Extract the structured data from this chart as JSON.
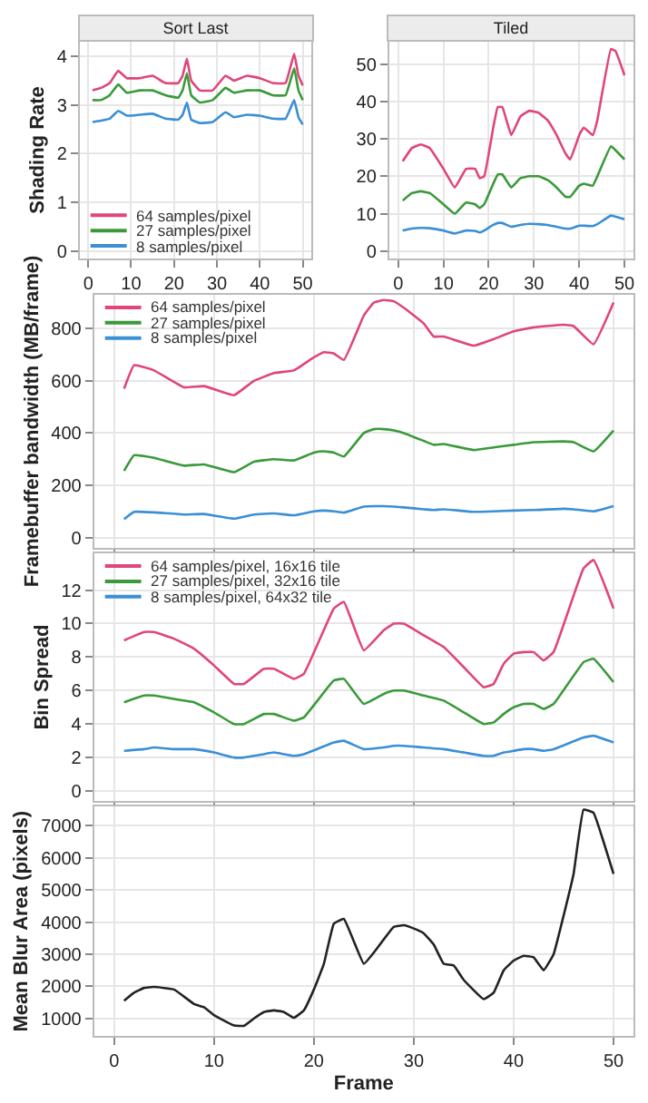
{
  "chart_data": [
    {
      "type": "line",
      "title": "Sort Last",
      "ylabel": "Shading Rate",
      "xlim": [
        -2,
        52
      ],
      "xticks": [
        0,
        10,
        20,
        30,
        40,
        50
      ],
      "ylim": [
        -0.15,
        4.3
      ],
      "yticks": [
        0,
        1,
        2,
        3,
        4
      ],
      "grid": true,
      "legend": "bottom left",
      "x": [
        1,
        3,
        5,
        7,
        9,
        12,
        15,
        18,
        21,
        22,
        23,
        24,
        26,
        29,
        32,
        34,
        37,
        40,
        43,
        46,
        48,
        49,
        50
      ],
      "series": [
        {
          "name": "64 samples/pixel",
          "color": "#e0457b",
          "values": [
            3.3,
            3.35,
            3.45,
            3.7,
            3.55,
            3.55,
            3.6,
            3.45,
            3.45,
            3.6,
            3.95,
            3.5,
            3.3,
            3.3,
            3.6,
            3.5,
            3.6,
            3.55,
            3.45,
            3.45,
            4.05,
            3.6,
            3.4
          ]
        },
        {
          "name": "27 samples/pixel",
          "color": "#3a9a3a",
          "values": [
            3.1,
            3.1,
            3.2,
            3.42,
            3.25,
            3.3,
            3.3,
            3.2,
            3.15,
            3.3,
            3.65,
            3.2,
            3.05,
            3.1,
            3.35,
            3.25,
            3.3,
            3.3,
            3.2,
            3.2,
            3.75,
            3.3,
            3.1
          ]
        },
        {
          "name": "8 samples/pixel",
          "color": "#3a8fd6",
          "values": [
            2.65,
            2.68,
            2.72,
            2.88,
            2.78,
            2.8,
            2.82,
            2.72,
            2.7,
            2.8,
            3.05,
            2.7,
            2.63,
            2.65,
            2.85,
            2.75,
            2.8,
            2.78,
            2.72,
            2.72,
            3.1,
            2.75,
            2.6
          ]
        }
      ]
    },
    {
      "type": "line",
      "title": "Tiled",
      "xlim": [
        -2,
        52
      ],
      "xticks": [
        0,
        10,
        20,
        30,
        40,
        50
      ],
      "ylim": [
        -2,
        56
      ],
      "yticks": [
        0,
        10,
        20,
        30,
        40,
        50
      ],
      "grid": true,
      "x": [
        1,
        3,
        5,
        7,
        10,
        12.5,
        15,
        17,
        18,
        19,
        21,
        22,
        23,
        25,
        27,
        29,
        31,
        33,
        35,
        37,
        38,
        40,
        41,
        43,
        44,
        47,
        48,
        50
      ],
      "series": [
        {
          "color": "#e0457b",
          "values": [
            24,
            27.5,
            28.5,
            27.5,
            22,
            17,
            22,
            22,
            19.5,
            20,
            33,
            38.5,
            38.5,
            31,
            36,
            37.5,
            37,
            35,
            31,
            26,
            24.5,
            31,
            33,
            31,
            35,
            54,
            53.5,
            47
          ]
        },
        {
          "color": "#3a9a3a",
          "values": [
            13.5,
            15.5,
            16,
            15.5,
            12.5,
            10,
            13,
            12.5,
            11.5,
            12.5,
            18,
            20.5,
            20.5,
            17,
            19.5,
            20,
            20,
            19,
            17,
            14.5,
            14.5,
            17.5,
            18,
            17.5,
            20,
            28,
            27,
            24.5
          ]
        },
        {
          "color": "#3a8fd6",
          "values": [
            5.5,
            6,
            6.2,
            6.1,
            5.5,
            4.7,
            5.5,
            5.4,
            5,
            5.5,
            7,
            7.5,
            7.5,
            6.5,
            7,
            7.3,
            7.2,
            7,
            6.5,
            6,
            6,
            6.8,
            6.8,
            6.7,
            7.2,
            9.5,
            9.2,
            8.5
          ]
        }
      ]
    },
    {
      "type": "line",
      "ylabel": "Framebuffer bandwidth (MB/frame)",
      "xlim": [
        -2,
        52
      ],
      "xticks": [
        0,
        10,
        20,
        30,
        40,
        50
      ],
      "ylim": [
        -40,
        930
      ],
      "yticks": [
        0,
        200,
        400,
        600,
        800
      ],
      "grid": true,
      "legend": "top left",
      "tick_labels": "y",
      "x": [
        1,
        2,
        4,
        7,
        9,
        12,
        14,
        16,
        18,
        20,
        21,
        22,
        23,
        25,
        26,
        27,
        28,
        29,
        31,
        32,
        33,
        36,
        38,
        40,
        42,
        45,
        46,
        48,
        50
      ],
      "series": [
        {
          "name": "64 samples/pixel",
          "color": "#e0457b",
          "values": [
            570,
            660,
            640,
            575,
            580,
            545,
            600,
            630,
            640,
            690,
            710,
            705,
            680,
            850,
            900,
            910,
            905,
            880,
            820,
            770,
            770,
            735,
            760,
            790,
            805,
            815,
            810,
            740,
            900
          ]
        },
        {
          "name": "27 samples/pixel",
          "color": "#3a9a3a",
          "values": [
            255,
            315,
            305,
            275,
            280,
            250,
            290,
            300,
            295,
            325,
            330,
            325,
            310,
            400,
            415,
            415,
            410,
            400,
            370,
            355,
            358,
            335,
            345,
            355,
            365,
            368,
            365,
            330,
            410
          ]
        },
        {
          "name": "8 samples/pixel",
          "color": "#3a8fd6",
          "values": [
            70,
            98,
            96,
            88,
            90,
            72,
            88,
            92,
            85,
            100,
            103,
            100,
            95,
            118,
            120,
            120,
            118,
            115,
            108,
            105,
            108,
            98,
            100,
            103,
            105,
            110,
            108,
            100,
            120
          ]
        }
      ]
    },
    {
      "type": "line",
      "ylabel": "Bin Spread",
      "xlim": [
        -2,
        52
      ],
      "xticks": [
        0,
        10,
        20,
        30,
        40,
        50
      ],
      "ylim": [
        -0.6,
        14.2
      ],
      "yticks": [
        0,
        2,
        4,
        6,
        8,
        10,
        12
      ],
      "grid": true,
      "legend": "top left",
      "tick_labels": "y",
      "x": [
        1,
        3,
        4,
        6,
        8,
        10,
        12,
        13,
        15,
        16,
        18,
        19,
        22,
        23,
        25,
        27,
        28,
        29,
        31,
        33,
        35,
        37,
        38,
        39,
        40,
        41,
        42,
        43,
        44,
        47,
        48,
        50
      ],
      "series": [
        {
          "name": "64 samples/pixel, 16x16 tile",
          "color": "#e0457b",
          "values": [
            9.0,
            9.5,
            9.5,
            9.1,
            8.5,
            7.5,
            6.4,
            6.4,
            7.3,
            7.3,
            6.7,
            7.0,
            10.9,
            11.3,
            8.4,
            9.6,
            10,
            10,
            9.3,
            8.6,
            7.4,
            6.2,
            6.4,
            7.6,
            8.2,
            8.3,
            8.3,
            7.8,
            8.3,
            13.3,
            13.8,
            10.9
          ]
        },
        {
          "name": "27 samples/pixel, 32x16 tile",
          "color": "#3a9a3a",
          "values": [
            5.3,
            5.7,
            5.7,
            5.5,
            5.3,
            4.7,
            4.0,
            4.0,
            4.6,
            4.6,
            4.2,
            4.4,
            6.6,
            6.7,
            5.2,
            5.8,
            6.0,
            6.0,
            5.7,
            5.4,
            4.7,
            4.0,
            4.1,
            4.6,
            5.0,
            5.2,
            5.2,
            4.9,
            5.2,
            7.7,
            7.9,
            6.5
          ]
        },
        {
          "name": "8 samples/pixel, 64x32 tile",
          "color": "#3a8fd6",
          "values": [
            2.4,
            2.5,
            2.6,
            2.5,
            2.5,
            2.3,
            2.0,
            2.0,
            2.2,
            2.3,
            2.1,
            2.2,
            2.9,
            3.0,
            2.5,
            2.6,
            2.7,
            2.7,
            2.6,
            2.5,
            2.3,
            2.1,
            2.1,
            2.3,
            2.4,
            2.5,
            2.5,
            2.4,
            2.5,
            3.2,
            3.3,
            2.9
          ]
        }
      ]
    },
    {
      "type": "line",
      "ylabel": "Mean Blur Area (pixels)",
      "xlabel": "Frame",
      "xlim": [
        -2,
        52
      ],
      "xticks": [
        0,
        10,
        20,
        30,
        40,
        50
      ],
      "ylim": [
        450,
        7600
      ],
      "yticks": [
        1000,
        2000,
        3000,
        4000,
        5000,
        6000,
        7000
      ],
      "grid": true,
      "x": [
        1,
        2,
        3,
        4,
        6,
        8,
        9,
        10,
        12,
        13,
        14,
        15,
        16,
        17,
        18,
        19,
        20,
        21,
        22,
        23,
        25,
        26,
        28,
        29,
        30,
        31,
        32,
        33,
        34,
        35,
        37,
        38,
        39,
        40,
        41,
        42,
        43,
        44,
        45,
        46,
        47,
        48,
        49,
        50
      ],
      "series": [
        {
          "color": "#222222",
          "values": [
            1550,
            1800,
            1950,
            1980,
            1900,
            1450,
            1350,
            1100,
            780,
            770,
            1000,
            1200,
            1250,
            1200,
            1020,
            1250,
            1900,
            2700,
            3950,
            4100,
            2700,
            3050,
            3850,
            3900,
            3800,
            3650,
            3300,
            2700,
            2650,
            2200,
            1600,
            1800,
            2500,
            2800,
            2950,
            2900,
            2500,
            3000,
            4200,
            5500,
            7500,
            7400,
            6500,
            5500
          ]
        }
      ]
    }
  ]
}
